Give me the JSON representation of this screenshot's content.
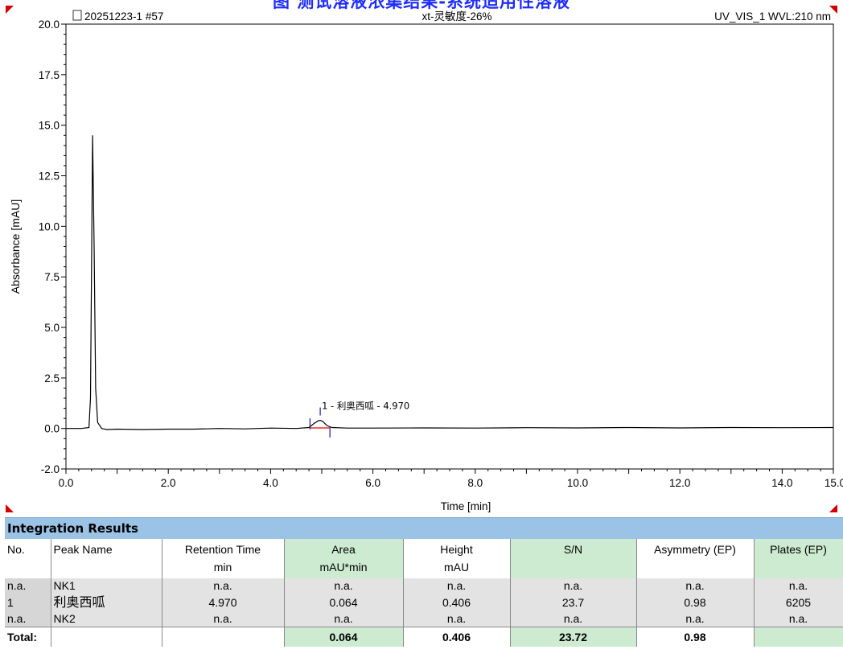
{
  "title": "图 测试溶液浓集结果-系统适用性溶液",
  "chart_data": {
    "type": "line",
    "header_left": "20251223-1 #57",
    "header_center": "xt-灵敏度-26%",
    "header_right": "UV_VIS_1 WVL:210 nm",
    "xlabel": "Time [min]",
    "ylabel": "Absorbance [mAU]",
    "xlim": [
      0,
      15
    ],
    "ylim": [
      -2,
      20
    ],
    "x_ticks": [
      "0.0",
      "2.0",
      "4.0",
      "6.0",
      "8.0",
      "10.0",
      "12.0",
      "14.0",
      "15.0"
    ],
    "y_ticks": [
      "20.0",
      "17.5",
      "15.0",
      "12.5",
      "10.0",
      "7.5",
      "5.0",
      "2.5",
      "0.0",
      "-2.0"
    ],
    "series": [
      {
        "x": [
          0.0,
          0.3,
          0.45,
          0.48,
          0.5,
          0.52,
          0.55,
          0.58,
          0.62,
          0.7,
          0.8,
          1.0,
          1.5,
          2.0,
          2.5,
          3.0,
          3.5,
          4.0,
          4.5,
          4.75,
          4.85,
          4.93,
          4.97,
          5.02,
          5.1,
          5.2,
          5.5,
          6.0,
          7.0,
          8.0,
          9.0,
          10.0,
          11.0,
          12.0,
          13.0,
          14.0,
          15.0
        ],
        "y": [
          0.0,
          0.0,
          0.05,
          1.5,
          8.0,
          14.5,
          9.0,
          2.0,
          0.3,
          0.0,
          -0.05,
          -0.03,
          -0.05,
          -0.03,
          -0.03,
          0.0,
          -0.02,
          0.02,
          0.0,
          0.05,
          0.25,
          0.38,
          0.406,
          0.35,
          0.15,
          0.05,
          0.02,
          0.02,
          0.03,
          0.02,
          0.04,
          0.03,
          0.05,
          0.03,
          0.05,
          0.04,
          0.05
        ]
      }
    ],
    "annotations": [
      {
        "text": "1 - 利奥西呱 - 4.970",
        "x": 4.97,
        "y": 0.406
      }
    ],
    "colors": {
      "trace": "#000000",
      "baseline": "#e00000",
      "markers": "#1a1aa6",
      "frame": "#000000",
      "corners": "#d40000"
    }
  },
  "results": {
    "title": "Integration Results",
    "headers": [
      {
        "l1": "No.",
        "l2": ""
      },
      {
        "l1": "Peak Name",
        "l2": ""
      },
      {
        "l1": "Retention Time",
        "l2": "min"
      },
      {
        "l1": "Area",
        "l2": "mAU*min"
      },
      {
        "l1": "Height",
        "l2": "mAU"
      },
      {
        "l1": "S/N",
        "l2": ""
      },
      {
        "l1": "Asymmetry (EP)",
        "l2": ""
      },
      {
        "l1": "Plates (EP)",
        "l2": ""
      }
    ],
    "rows": [
      [
        "n.a.",
        "NK1",
        "n.a.",
        "n.a.",
        "n.a.",
        "n.a.",
        "n.a.",
        "n.a."
      ],
      [
        "1",
        "利奥西呱",
        "4.970",
        "0.064",
        "0.406",
        "23.7",
        "0.98",
        "6205"
      ],
      [
        "n.a.",
        "NK2",
        "n.a.",
        "n.a.",
        "n.a.",
        "n.a.",
        "n.a.",
        "n.a."
      ]
    ],
    "total": [
      "Total:",
      "",
      "",
      "0.064",
      "0.406",
      "23.72",
      "0.98",
      ""
    ]
  }
}
